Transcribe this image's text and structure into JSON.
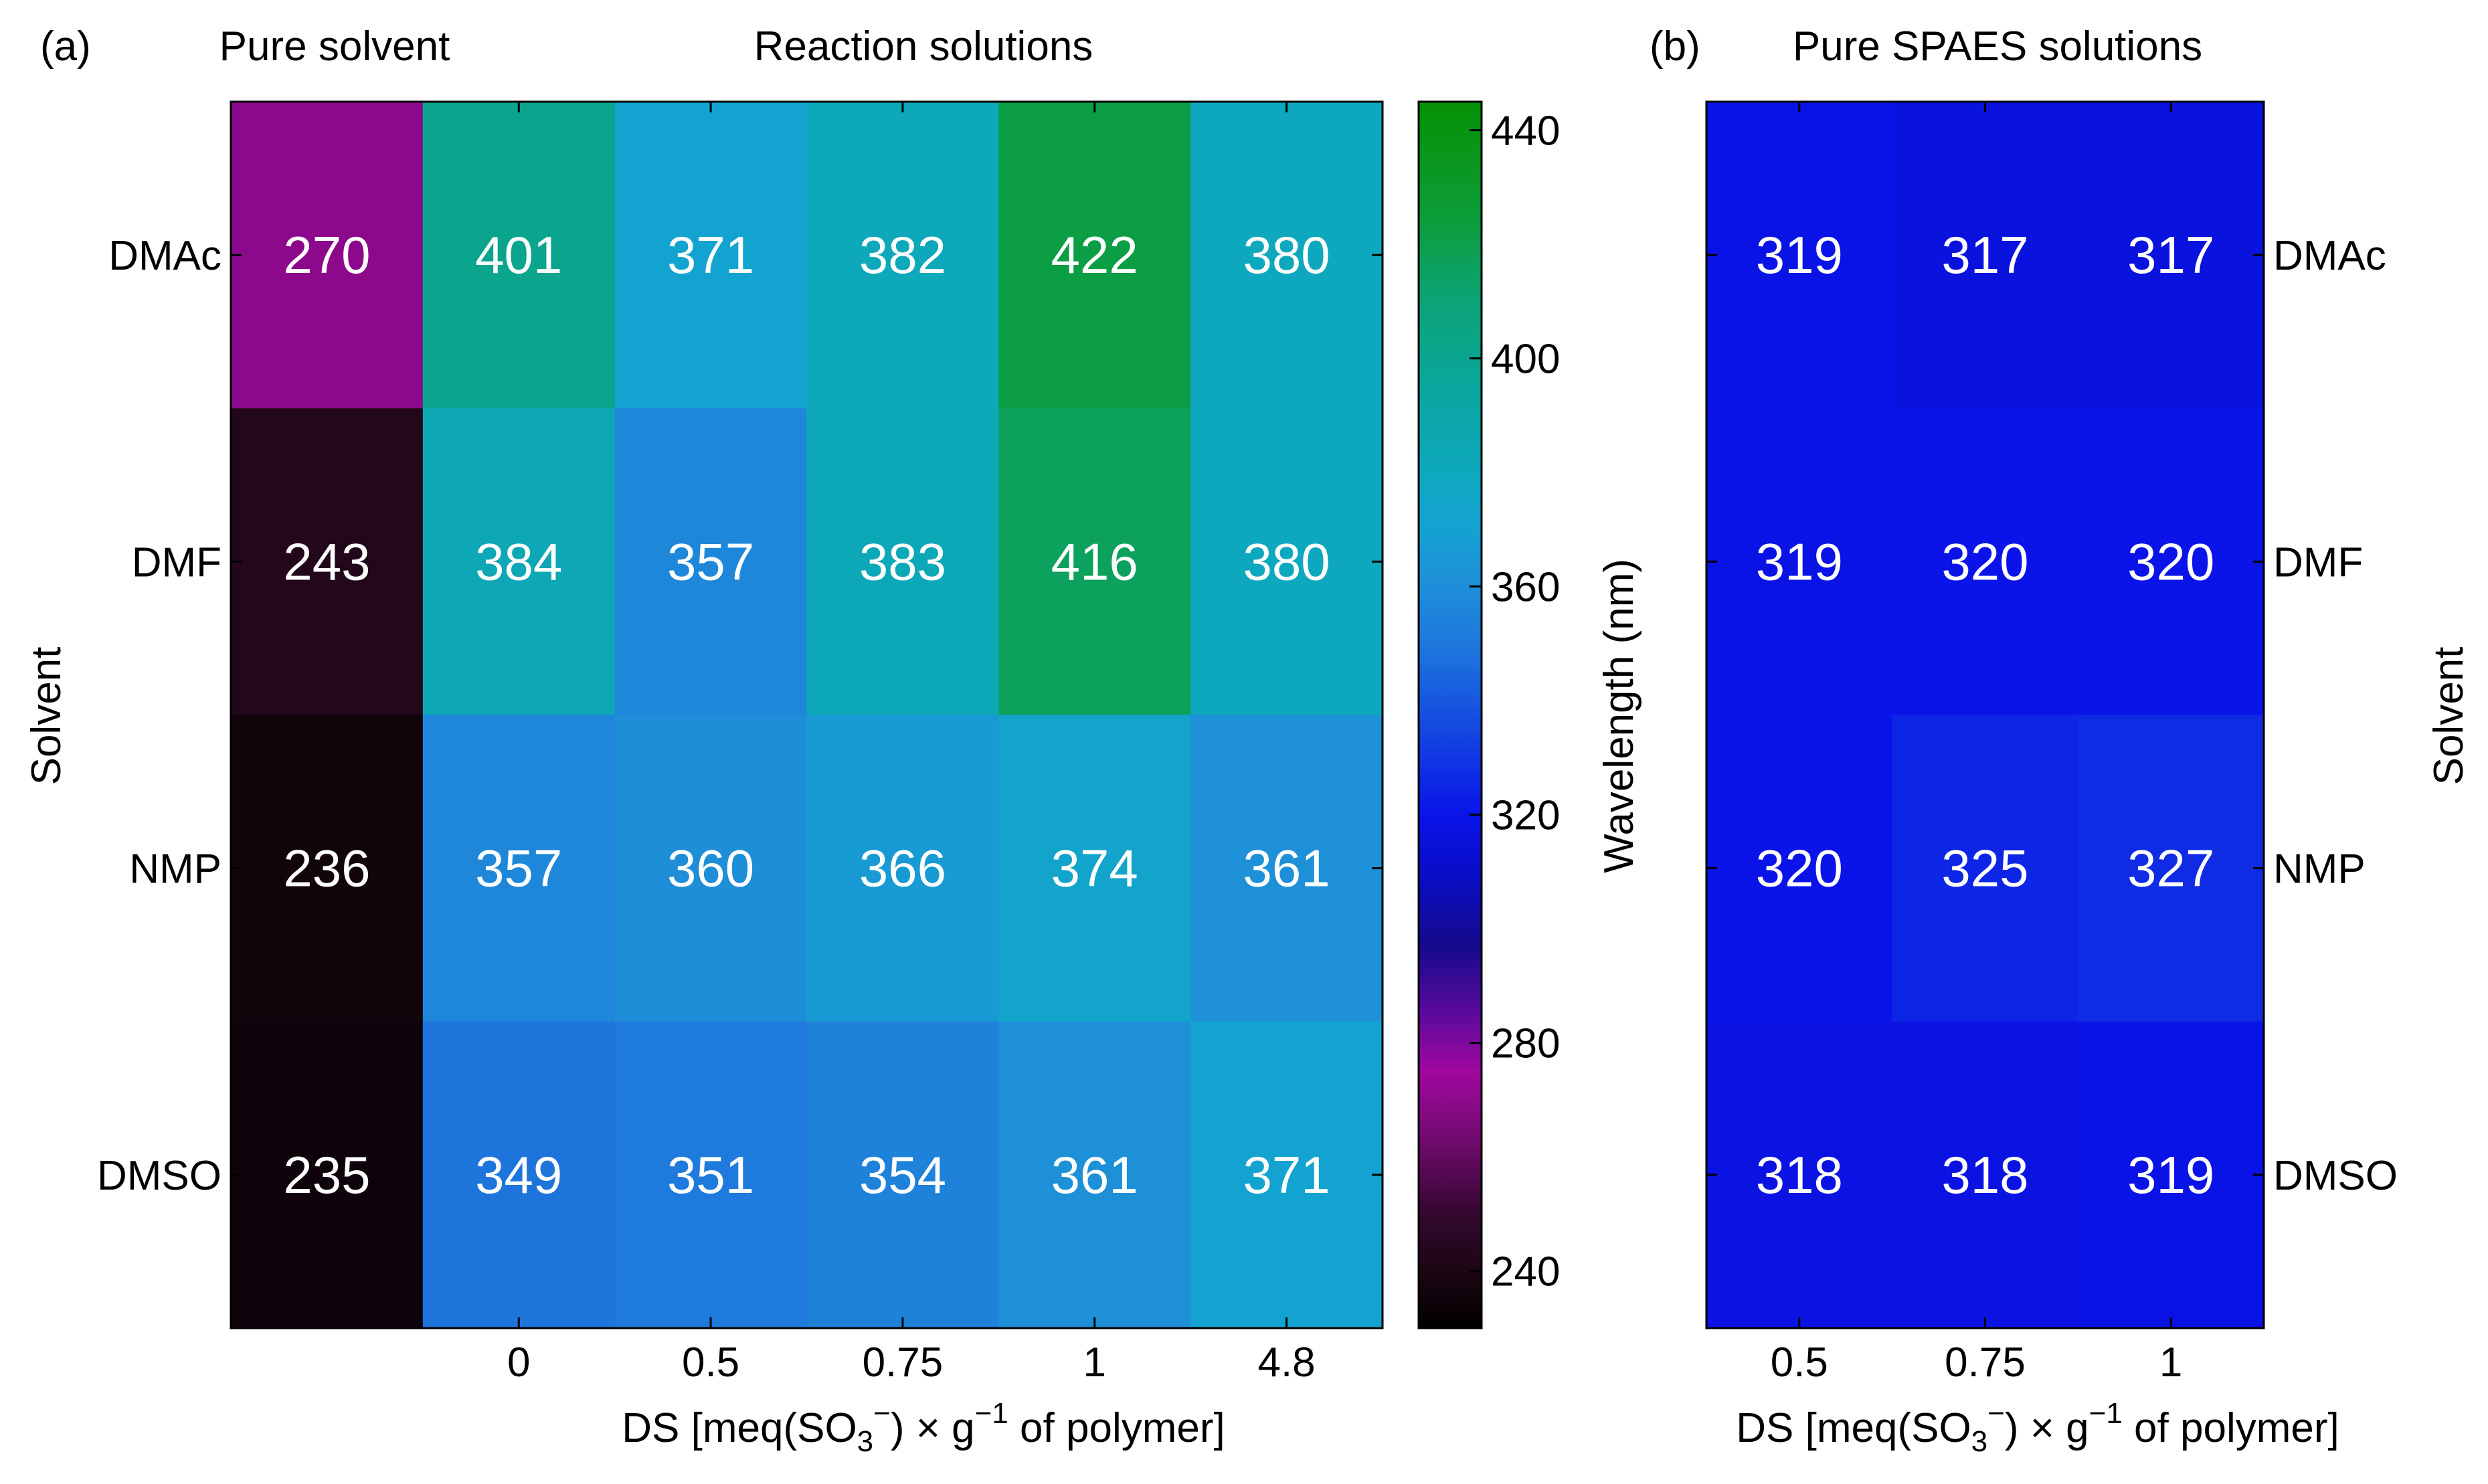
{
  "chart_data": [
    {
      "type": "heatmap",
      "panel_label": "(a)",
      "title_left": "Pure solvent",
      "title_right": "Reaction solutions",
      "ylabel": "Solvent",
      "xlabel_parts": {
        "prefix": "DS [meq(SO",
        "sub": "3",
        "sup_charge": "−",
        "middle": ") × g",
        "sup_exp": "−1",
        "suffix": " of polymer]"
      },
      "rows": [
        "DMAc",
        "DMF",
        "NMP",
        "DMSO"
      ],
      "columns": [
        "",
        "0",
        "0.5",
        "0.75",
        "1",
        "4.8"
      ],
      "values": [
        [
          270,
          401,
          371,
          382,
          422,
          380
        ],
        [
          243,
          384,
          357,
          383,
          416,
          380
        ],
        [
          236,
          357,
          360,
          366,
          374,
          361
        ],
        [
          235,
          349,
          351,
          354,
          361,
          371
        ]
      ]
    },
    {
      "type": "heatmap",
      "panel_label": "(b)",
      "title": "Pure SPAES solutions",
      "ylabel": "Solvent",
      "xlabel_parts": {
        "prefix": "DS [meq(SO",
        "sub": "3",
        "sup_charge": "−",
        "middle": ") × g",
        "sup_exp": "−1",
        "suffix": " of polymer]"
      },
      "rows": [
        "DMAc",
        "DMF",
        "NMP",
        "DMSO"
      ],
      "columns": [
        "0.5",
        "0.75",
        "1"
      ],
      "values": [
        [
          319,
          317,
          317
        ],
        [
          319,
          320,
          320
        ],
        [
          320,
          325,
          327
        ],
        [
          318,
          318,
          319
        ]
      ]
    }
  ],
  "colorbar": {
    "label": "Wavelength (nm)",
    "vmin": 230,
    "vmax": 445,
    "ticks": [
      240,
      280,
      320,
      360,
      400,
      440
    ],
    "stops": [
      {
        "value": 230,
        "color": "#000000"
      },
      {
        "value": 240,
        "color": "#1c0613"
      },
      {
        "value": 250,
        "color": "#33082f"
      },
      {
        "value": 265,
        "color": "#7a0a78"
      },
      {
        "value": 275,
        "color": "#a0089e"
      },
      {
        "value": 285,
        "color": "#5c0a9c"
      },
      {
        "value": 297,
        "color": "#150a8c"
      },
      {
        "value": 310,
        "color": "#0a0ec8"
      },
      {
        "value": 320,
        "color": "#0a14e8"
      },
      {
        "value": 335,
        "color": "#1448e0"
      },
      {
        "value": 350,
        "color": "#1e78dc"
      },
      {
        "value": 360,
        "color": "#1e8ed8"
      },
      {
        "value": 370,
        "color": "#14a2d2"
      },
      {
        "value": 380,
        "color": "#0ea8be"
      },
      {
        "value": 395,
        "color": "#0aa69c"
      },
      {
        "value": 410,
        "color": "#0ca476"
      },
      {
        "value": 425,
        "color": "#0c9c38"
      },
      {
        "value": 440,
        "color": "#089410"
      },
      {
        "value": 445,
        "color": "#069008"
      }
    ]
  }
}
